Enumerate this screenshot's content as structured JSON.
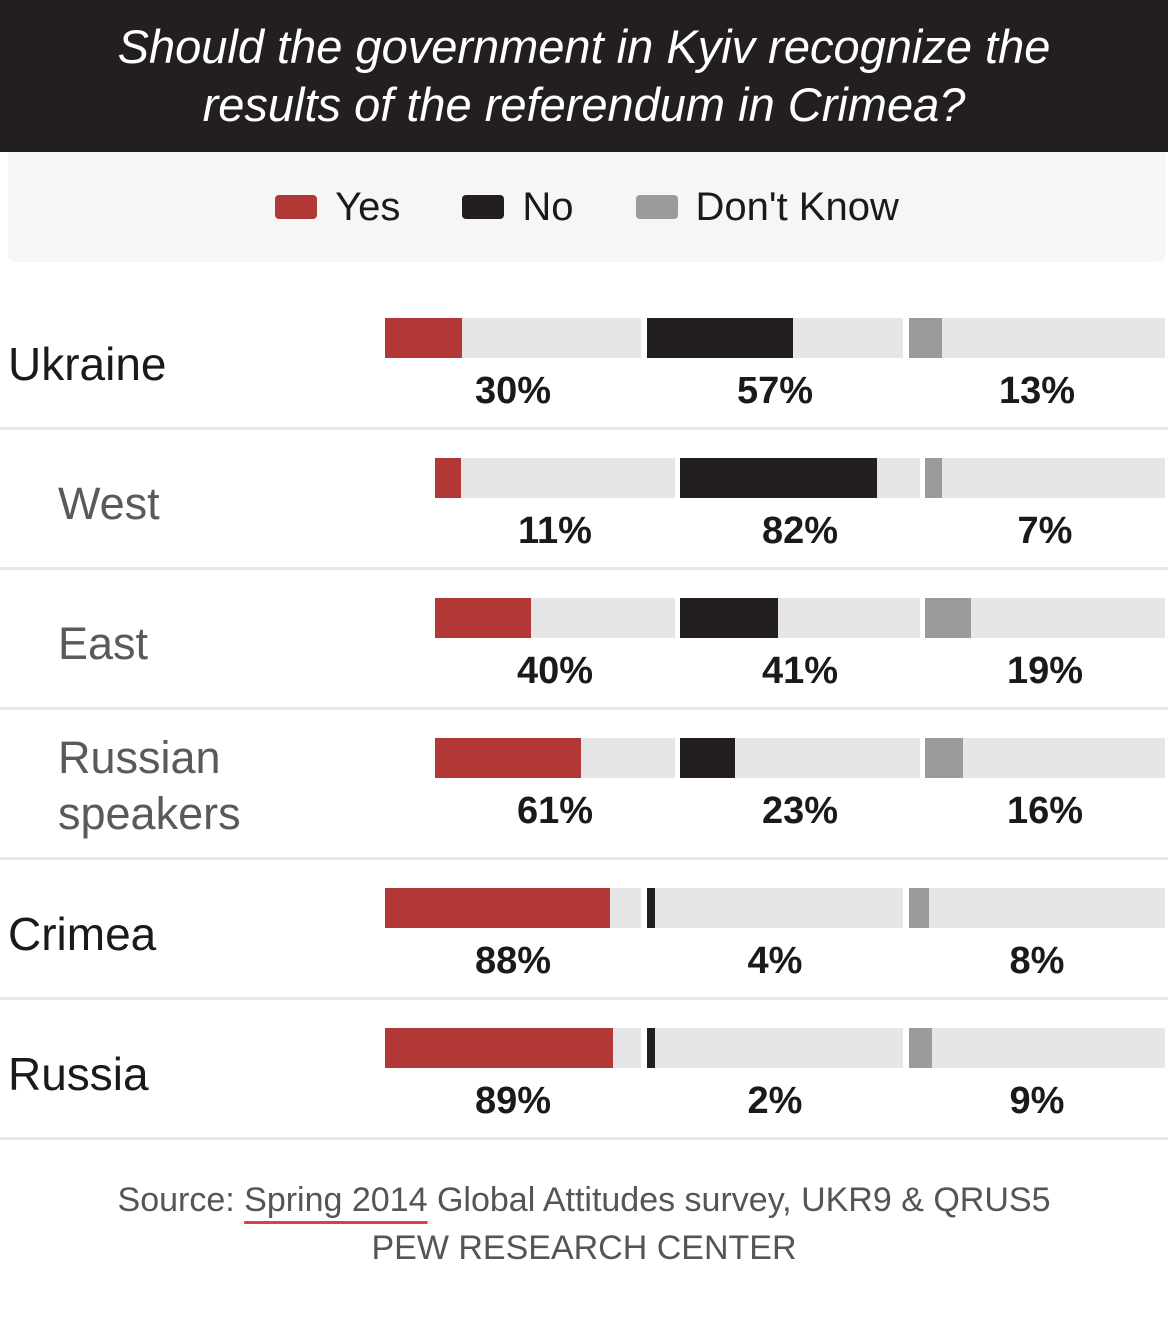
{
  "title": {
    "line1": "Should the government in Kyiv recognize the",
    "line2": "results of the referendum in Crimea?"
  },
  "legend": [
    {
      "label": "Yes",
      "color": "#b23838"
    },
    {
      "label": "No",
      "color": "#231f20"
    },
    {
      "label": "Don't Know",
      "color": "#9b9b9b"
    }
  ],
  "chart_data": {
    "type": "bar",
    "title": "Should the government in Kyiv recognize the results of the referendum in Crimea?",
    "series_names": [
      "Yes",
      "No",
      "Don't Know"
    ],
    "unit": "%",
    "ylim": [
      0,
      100
    ],
    "categories": [
      "Ukraine",
      "West",
      "East",
      "Russian speakers",
      "Crimea",
      "Russia"
    ],
    "rows": [
      {
        "label": "Ukraine",
        "sub": false,
        "values": [
          30,
          57,
          13
        ],
        "texts": [
          "30%",
          "57%",
          "13%"
        ]
      },
      {
        "label": "West",
        "sub": true,
        "values": [
          11,
          82,
          7
        ],
        "texts": [
          "11%",
          "82%",
          "7%"
        ]
      },
      {
        "label": "East",
        "sub": true,
        "values": [
          40,
          41,
          19
        ],
        "texts": [
          "40%",
          "41%",
          "19%"
        ]
      },
      {
        "label": "Russian speakers",
        "label_lines": [
          "Russian",
          "speakers"
        ],
        "sub": true,
        "values": [
          61,
          23,
          16
        ],
        "texts": [
          "61%",
          "23%",
          "16%"
        ]
      },
      {
        "label": "Crimea",
        "sub": false,
        "values": [
          88,
          4,
          8
        ],
        "texts": [
          "88%",
          "4%",
          "8%"
        ]
      },
      {
        "label": "Russia",
        "sub": false,
        "values": [
          89,
          2,
          9
        ],
        "texts": [
          "89%",
          "2%",
          "9%"
        ]
      }
    ]
  },
  "source": {
    "prefix": "Source: ",
    "link": "Spring 2014",
    "rest": " Global Attitudes survey, UKR9 & QRUS5",
    "org": "PEW RESEARCH CENTER"
  }
}
